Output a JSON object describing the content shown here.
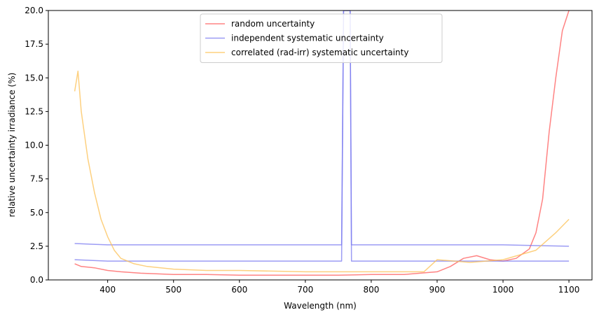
{
  "chart_data": {
    "type": "line",
    "xlabel": "Wavelength (nm)",
    "ylabel": "relative uncertainty irradiance (%)",
    "xlim": [
      310,
      1135
    ],
    "ylim": [
      0,
      20
    ],
    "x_ticks": [
      400,
      500,
      600,
      700,
      800,
      900,
      1000,
      1100
    ],
    "x_tick_labels": [
      "400",
      "500",
      "600",
      "700",
      "800",
      "900",
      "1000",
      "1100"
    ],
    "y_ticks": [
      0,
      2.5,
      5,
      7.5,
      10,
      12.5,
      15,
      17.5,
      20
    ],
    "y_tick_labels": [
      "0.0",
      "2.5",
      "5.0",
      "7.5",
      "10.0",
      "12.5",
      "15.0",
      "17.5",
      "20.0"
    ],
    "legend_position": "top-center",
    "grid": false,
    "series": [
      {
        "name": "random uncertainty",
        "color": "#ff5a5a",
        "x": [
          350,
          360,
          380,
          400,
          420,
          450,
          500,
          550,
          600,
          650,
          700,
          750,
          800,
          850,
          900,
          920,
          940,
          960,
          980,
          1000,
          1020,
          1040,
          1050,
          1060,
          1070,
          1080,
          1090,
          1100
        ],
        "y": [
          1.2,
          1.0,
          0.9,
          0.7,
          0.6,
          0.5,
          0.4,
          0.4,
          0.35,
          0.35,
          0.35,
          0.35,
          0.4,
          0.4,
          0.6,
          1.0,
          1.6,
          1.8,
          1.5,
          1.4,
          1.6,
          2.3,
          3.5,
          6.0,
          11.0,
          15.0,
          18.5,
          20.0
        ]
      },
      {
        "name": "independent systematic uncertainty",
        "color": "#7b7bf0",
        "x": [
          350,
          400,
          500,
          600,
          700,
          755,
          758,
          760,
          768,
          770,
          800,
          900,
          1000,
          1100
        ],
        "y": [
          2.7,
          2.6,
          2.6,
          2.6,
          2.6,
          2.6,
          20.0,
          20.0,
          20.0,
          2.6,
          2.6,
          2.6,
          2.6,
          2.5
        ]
      },
      {
        "name": "",
        "color": "#7b7bf0",
        "x": [
          350,
          400,
          500,
          600,
          700,
          755,
          758,
          762,
          768,
          770,
          800,
          900,
          1000,
          1100
        ],
        "y": [
          1.5,
          1.4,
          1.4,
          1.4,
          1.4,
          1.4,
          20.0,
          20.0,
          20.0,
          1.4,
          1.4,
          1.4,
          1.4,
          1.4
        ]
      },
      {
        "name": "correlated (rad-irr) systematic uncertainty",
        "color": "#fcc054",
        "x": [
          350,
          355,
          360,
          370,
          380,
          390,
          400,
          410,
          420,
          440,
          460,
          500,
          550,
          600,
          700,
          800,
          880,
          900,
          950,
          1000,
          1050,
          1080,
          1100
        ],
        "y": [
          14.0,
          15.5,
          12.5,
          9.0,
          6.5,
          4.5,
          3.2,
          2.2,
          1.6,
          1.2,
          1.0,
          0.8,
          0.7,
          0.7,
          0.6,
          0.6,
          0.6,
          1.5,
          1.3,
          1.5,
          2.2,
          3.5,
          4.5
        ]
      }
    ]
  }
}
